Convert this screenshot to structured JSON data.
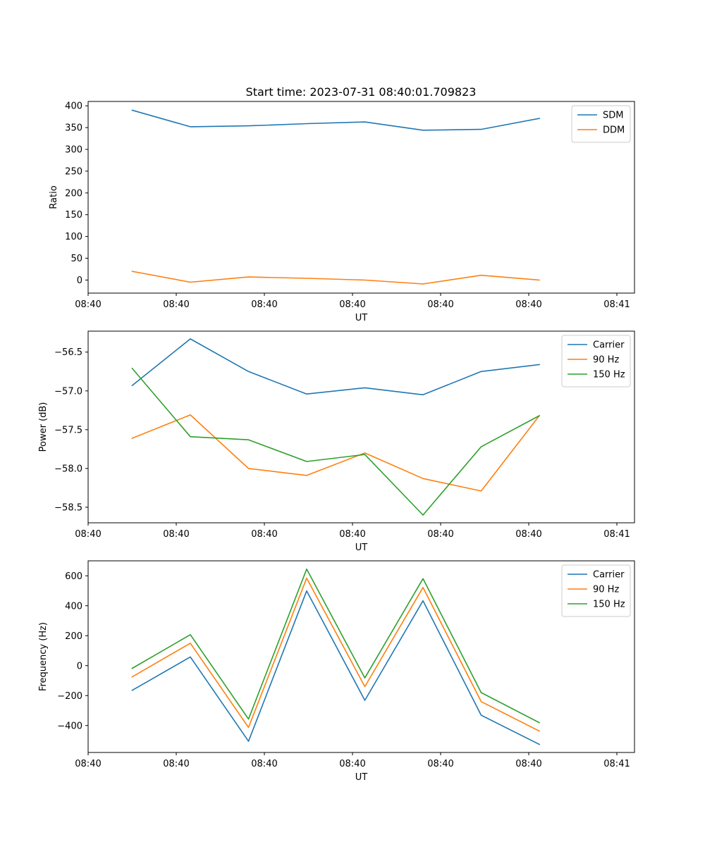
{
  "figure": {
    "title": "Start time: 2023-07-31 08:40:01.709823"
  },
  "chart_data": [
    {
      "type": "line",
      "xlabel": "UT",
      "ylabel": "Ratio",
      "xlim": [
        0,
        6.2
      ],
      "ylim": [
        -30,
        410
      ],
      "xticks": [
        0,
        1,
        2,
        3,
        4,
        5,
        6
      ],
      "xtick_labels": [
        "08:40",
        "08:40",
        "08:40",
        "08:40",
        "08:40",
        "08:40",
        "08:41"
      ],
      "yticks": [
        0,
        50,
        100,
        150,
        200,
        250,
        300,
        350,
        400
      ],
      "ytick_labels": [
        "0",
        "50",
        "100",
        "150",
        "200",
        "250",
        "300",
        "350",
        "400"
      ],
      "legend": "top-right",
      "x": [
        0.5,
        1.16,
        1.82,
        2.48,
        3.14,
        3.8,
        4.46,
        5.12
      ],
      "series": [
        {
          "name": "SDM",
          "color": "#1f77b4",
          "values": [
            390,
            352,
            354,
            359,
            363,
            344,
            346,
            371
          ]
        },
        {
          "name": "DDM",
          "color": "#ff7f0e",
          "values": [
            20,
            -5,
            7,
            4,
            0,
            -9,
            11,
            0
          ]
        }
      ]
    },
    {
      "type": "line",
      "xlabel": "UT",
      "ylabel": "Power (dB)",
      "xlim": [
        0,
        6.2
      ],
      "ylim": [
        -58.7,
        -56.23
      ],
      "xticks": [
        0,
        1,
        2,
        3,
        4,
        5,
        6
      ],
      "xtick_labels": [
        "08:40",
        "08:40",
        "08:40",
        "08:40",
        "08:40",
        "08:40",
        "08:41"
      ],
      "yticks": [
        -58.5,
        -58.0,
        -57.5,
        -57.0,
        -56.5
      ],
      "ytick_labels": [
        "−58.5",
        "−58.0",
        "−57.5",
        "−57.0",
        "−56.5"
      ],
      "legend": "top-right",
      "x": [
        0.5,
        1.16,
        1.82,
        2.48,
        3.14,
        3.8,
        4.46,
        5.12
      ],
      "series": [
        {
          "name": "Carrier",
          "color": "#1f77b4",
          "values": [
            -56.93,
            -56.33,
            -56.75,
            -57.04,
            -56.96,
            -57.05,
            -56.75,
            -56.66
          ]
        },
        {
          "name": "90 Hz",
          "color": "#ff7f0e",
          "values": [
            -57.61,
            -57.31,
            -58.0,
            -58.09,
            -57.8,
            -58.13,
            -58.29,
            -57.32
          ]
        },
        {
          "name": "150 Hz",
          "color": "#2ca02c",
          "values": [
            -56.71,
            -57.59,
            -57.63,
            -57.91,
            -57.82,
            -58.6,
            -57.72,
            -57.32
          ]
        }
      ]
    },
    {
      "type": "line",
      "xlabel": "UT",
      "ylabel": "Frequency (Hz)",
      "xlim": [
        0,
        6.2
      ],
      "ylim": [
        -580,
        700
      ],
      "xticks": [
        0,
        1,
        2,
        3,
        4,
        5,
        6
      ],
      "xtick_labels": [
        "08:40",
        "08:40",
        "08:40",
        "08:40",
        "08:40",
        "08:40",
        "08:41"
      ],
      "yticks": [
        -400,
        -200,
        0,
        200,
        400,
        600
      ],
      "ytick_labels": [
        "−400",
        "−200",
        "0",
        "200",
        "400",
        "600"
      ],
      "legend": "top-right",
      "x": [
        0.5,
        1.16,
        1.82,
        2.48,
        3.14,
        3.8,
        4.46,
        5.12
      ],
      "series": [
        {
          "name": "Carrier",
          "color": "#1f77b4",
          "values": [
            -165,
            58,
            -505,
            499,
            -232,
            433,
            -331,
            -526
          ]
        },
        {
          "name": "90 Hz",
          "color": "#ff7f0e",
          "values": [
            -75,
            150,
            -413,
            584,
            -140,
            522,
            -240,
            -437
          ]
        },
        {
          "name": "150 Hz",
          "color": "#2ca02c",
          "values": [
            -18,
            207,
            -357,
            645,
            -82,
            581,
            -180,
            -381
          ]
        }
      ]
    }
  ]
}
